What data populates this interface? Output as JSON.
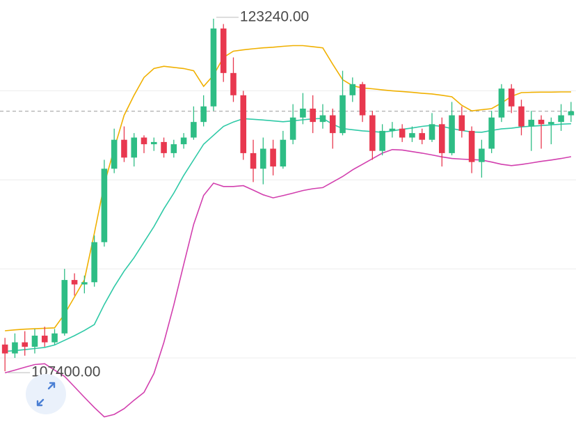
{
  "chart_data": {
    "type": "candlestick",
    "ylim": [
      105120,
      124080
    ],
    "grid_lines": [
      108000,
      112000,
      116000,
      120000
    ],
    "last_price": 119080,
    "up_color": "#2ebd85",
    "down_color": "#e8384f",
    "open": [
      108600,
      108200,
      108700,
      108500,
      109000,
      108700,
      109100,
      111500,
      111300,
      111400,
      113200,
      116500,
      117800,
      117000,
      117900,
      117600,
      117700,
      117200,
      117600,
      117900,
      118600,
      119300,
      122800,
      120800,
      119800,
      117200,
      116500,
      117400,
      116600,
      117800,
      118800,
      119200,
      118600,
      118900,
      118100,
      119800,
      120300,
      118900,
      117300,
      118200,
      118300,
      117900,
      118100,
      117800,
      118500,
      117200,
      118900,
      118200,
      116800,
      117400,
      118800,
      120100,
      119300,
      118400,
      118700,
      118500,
      118600,
      118900
    ],
    "high": [
      108900,
      109100,
      109200,
      109300,
      109400,
      109300,
      112000,
      111800,
      111700,
      113500,
      116900,
      118300,
      118400,
      118100,
      118000,
      117900,
      117900,
      117800,
      118100,
      119300,
      119800,
      123240,
      123000,
      121500,
      120000,
      117800,
      117900,
      117800,
      118200,
      119400,
      119900,
      119800,
      119400,
      119200,
      120900,
      120600,
      120400,
      119100,
      118500,
      118600,
      118500,
      118400,
      118300,
      119000,
      118800,
      119500,
      119300,
      118400,
      117800,
      119100,
      120300,
      120300,
      119600,
      119100,
      118900,
      118800,
      119400,
      119500
    ],
    "low": [
      107400,
      108000,
      108100,
      108200,
      108500,
      108600,
      109000,
      110800,
      110900,
      111200,
      113000,
      116300,
      116800,
      116600,
      117200,
      117300,
      117000,
      117000,
      117400,
      117800,
      118400,
      119100,
      120400,
      119500,
      116900,
      115900,
      115800,
      116200,
      116500,
      117600,
      118500,
      118100,
      118300,
      117400,
      118000,
      119500,
      118600,
      116900,
      117100,
      117900,
      117700,
      117700,
      117600,
      117700,
      116600,
      117100,
      117900,
      116300,
      116100,
      117200,
      118600,
      119000,
      118000,
      117300,
      117400,
      117600,
      118200,
      118600
    ],
    "close": [
      108200,
      108700,
      108500,
      109000,
      108700,
      109100,
      111500,
      111300,
      111400,
      113200,
      116500,
      117800,
      117000,
      117900,
      117600,
      117700,
      117200,
      117600,
      117900,
      118600,
      119300,
      122800,
      120800,
      119800,
      117200,
      116500,
      117400,
      116600,
      117800,
      118800,
      119200,
      118600,
      118900,
      118100,
      119800,
      120300,
      118900,
      117300,
      118200,
      118300,
      117900,
      118100,
      117800,
      118500,
      117200,
      118900,
      118200,
      116800,
      117400,
      118800,
      120100,
      119300,
      118400,
      118700,
      118500,
      118600,
      118900,
      119080
    ],
    "bands": {
      "upper": [
        109220,
        109260,
        109290,
        109310,
        109330,
        109350,
        109970,
        110740,
        111510,
        113600,
        115800,
        117400,
        118900,
        119800,
        120600,
        121000,
        121100,
        121050,
        121000,
        120900,
        120200,
        120700,
        121500,
        121780,
        121840,
        121890,
        121930,
        121960,
        122000,
        122030,
        122030,
        121980,
        121930,
        121200,
        120500,
        120230,
        120130,
        120090,
        120040,
        120000,
        119970,
        119930,
        119890,
        119860,
        119800,
        119730,
        119350,
        119100,
        119150,
        119200,
        119450,
        119750,
        119920,
        119930,
        119940,
        119940,
        119950,
        119950
      ],
      "upper_color": "#f0b000",
      "middle": [
        108290,
        108330,
        108370,
        108420,
        108470,
        108580,
        108790,
        109000,
        109230,
        109500,
        110400,
        111200,
        111900,
        112500,
        113200,
        113900,
        114700,
        115400,
        116200,
        116900,
        117600,
        118000,
        118400,
        118600,
        118750,
        118720,
        118690,
        118650,
        118610,
        118650,
        118700,
        118740,
        118760,
        118500,
        118300,
        118250,
        118200,
        118170,
        118140,
        118200,
        118270,
        118330,
        118400,
        118450,
        118400,
        118300,
        118220,
        118150,
        118140,
        118220,
        118290,
        118320,
        118380,
        118410,
        118440,
        118470,
        118500,
        118520
      ],
      "middle_color": "#2ec9a6",
      "lower": [
        107330,
        107450,
        107580,
        107700,
        107740,
        107450,
        107170,
        106700,
        106230,
        105770,
        105350,
        105460,
        105720,
        106100,
        106450,
        107300,
        108700,
        110370,
        112200,
        114000,
        115300,
        115850,
        115700,
        115700,
        115740,
        115540,
        115330,
        115190,
        115290,
        115400,
        115520,
        115600,
        115650,
        115900,
        116150,
        116450,
        116700,
        116950,
        117200,
        117360,
        117340,
        117270,
        117200,
        117120,
        117030,
        116960,
        116930,
        116910,
        116890,
        116800,
        116700,
        116640,
        116690,
        116760,
        116830,
        116890,
        116960,
        117040
      ],
      "lower_color": "#d23fae"
    },
    "annotations": [
      {
        "value": 123240,
        "label": "123240.00"
      },
      {
        "value": 107400,
        "label": "107400.00"
      }
    ]
  }
}
